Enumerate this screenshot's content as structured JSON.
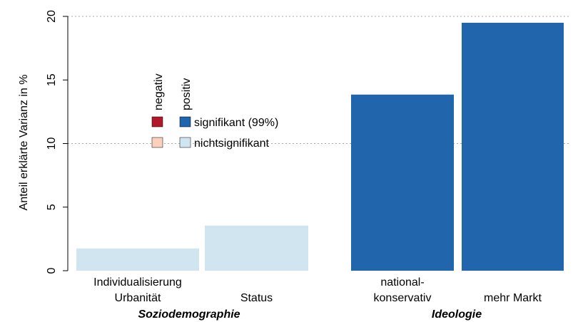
{
  "chart_data": {
    "type": "bar",
    "y_label": "Anteil erklärte Varianz in %",
    "categories": [
      [
        "Individualisierung",
        "Urbanität"
      ],
      [
        "Status"
      ],
      [
        "national-",
        "konservativ"
      ],
      [
        "mehr Markt"
      ]
    ],
    "values": [
      1.75,
      3.55,
      13.85,
      19.5
    ],
    "colors": [
      "#d1e5f0",
      "#d1e5f0",
      "#2166ac",
      "#2166ac"
    ],
    "groups": [
      "Soziodemographie",
      "Ideologie"
    ],
    "ylim": [
      0,
      20
    ],
    "yticks": [
      0,
      5,
      10,
      15,
      20
    ],
    "grid_yticks": [
      10,
      20
    ],
    "legend": {
      "columns": [
        "negativ",
        "positiv"
      ],
      "rows": [
        "signifikant (99%)",
        "nichtsignifikant"
      ],
      "colors": [
        [
          "#b2182b",
          "#2166ac"
        ],
        [
          "#fbd0bd",
          "#d1e5f0"
        ]
      ]
    }
  }
}
